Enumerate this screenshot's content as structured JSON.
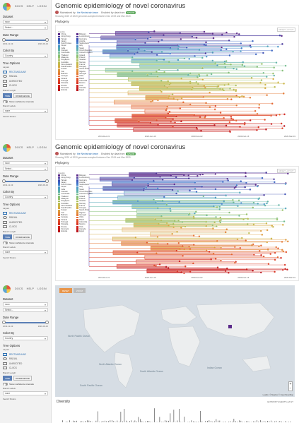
{
  "nav": {
    "docs": "DOCS",
    "help": "HELP",
    "login": "LOGIN"
  },
  "sidebar": {
    "dataset_label": "Dataset",
    "dataset_value": "ncov",
    "dataset_sub": "Select...",
    "date_label": "Date Range",
    "date_start": "2019-12-19",
    "date_end": "2020-03-10",
    "color_label": "Color By",
    "color_value": "Country",
    "tree_label": "Tree Options",
    "layout_label": "Layout",
    "layouts": [
      "RECTANGULAR",
      "RADIAL",
      "UNROOTED",
      "CLOCK"
    ],
    "branch_length_label": "Branch Length",
    "branch_time": "TIME",
    "branch_div": "DIVERGENCE",
    "confidence": "Show confidence intervals",
    "branch_labels_label": "Branch Labels",
    "branch_labels_value": "none",
    "search_label": "Search Strains"
  },
  "header": {
    "title": "Genomic epidemiology of novel coronavirus",
    "maintained": "Maintained by",
    "maintainer": "the Nextstrain team",
    "built": ". Enabled by data from",
    "badge": "GISAID",
    "showing": "Showing 3220 of 3220 genomes sampled between Dec 2019 and Mar 2020."
  },
  "phylogeny": {
    "title": "Phylogeny",
    "legend_header": "Country",
    "reset": "RESET LAYOUT",
    "axis_ticks": [
      "2019-Dec-31",
      "2020-Jan-19",
      "2020-Feb-02",
      "2020-Feb-16",
      "2020-Mar-01"
    ]
  },
  "legend_col1": [
    "China",
    "Hong Kong",
    "Taiwan",
    "Japan",
    "South Korea",
    "Nepal",
    "India",
    "Vietnam",
    "Cambodia",
    "Thailand",
    "Malaysia",
    "Singapore",
    "Australia",
    "New Zealand",
    "Saudi Arabia",
    "Kuwait",
    "Iran",
    "Bahrain",
    "Georgia",
    "Finland",
    "Portugal",
    "Slovakia",
    "Russia",
    "Denmark",
    "Estonia"
  ],
  "legend_col2": [
    "Belgium",
    "Luxembourg",
    "Germany",
    "Austria",
    "Switzerland",
    "Italy",
    "Spain",
    "Czech Republic",
    "United Kingdom",
    "Ireland",
    "Poland",
    "Sweden",
    "Norway",
    "France",
    "Hungary",
    "South Africa",
    "Nigeria",
    "Senegal",
    "Chile",
    "Brazil",
    "Colombia",
    "Mexico",
    "USA",
    "Canada",
    "Egypt"
  ],
  "legend_colors": [
    "#5b2a8a",
    "#4a3a9c",
    "#3f51b5",
    "#3e68c4",
    "#4482cc",
    "#4c98c8",
    "#55a8b9",
    "#62b4a6",
    "#72bc8f",
    "#85c07a",
    "#98c26a",
    "#abc15d",
    "#bcbd52",
    "#cbb64a",
    "#d6aa43",
    "#dd9c3e",
    "#e28b3a",
    "#e47935",
    "#e46731",
    "#e2552d",
    "#de4428",
    "#d83424",
    "#d02620",
    "#c61b1d",
    "#b9121a"
  ],
  "map": {
    "btn1": "RESET",
    "btn2": "ZOOM",
    "attribution": "Leaflet | © Mapbox © OpenStreetMap",
    "labels": [
      "North Atlantic Ocean",
      "North Pacific Ocean",
      "South Atlantic Ocean",
      "Indian Ocean",
      "South Pacific Ocean"
    ]
  },
  "diversity": {
    "title": "Diversity",
    "controls": "ENTROPY  EVENTS  AA  NT"
  }
}
